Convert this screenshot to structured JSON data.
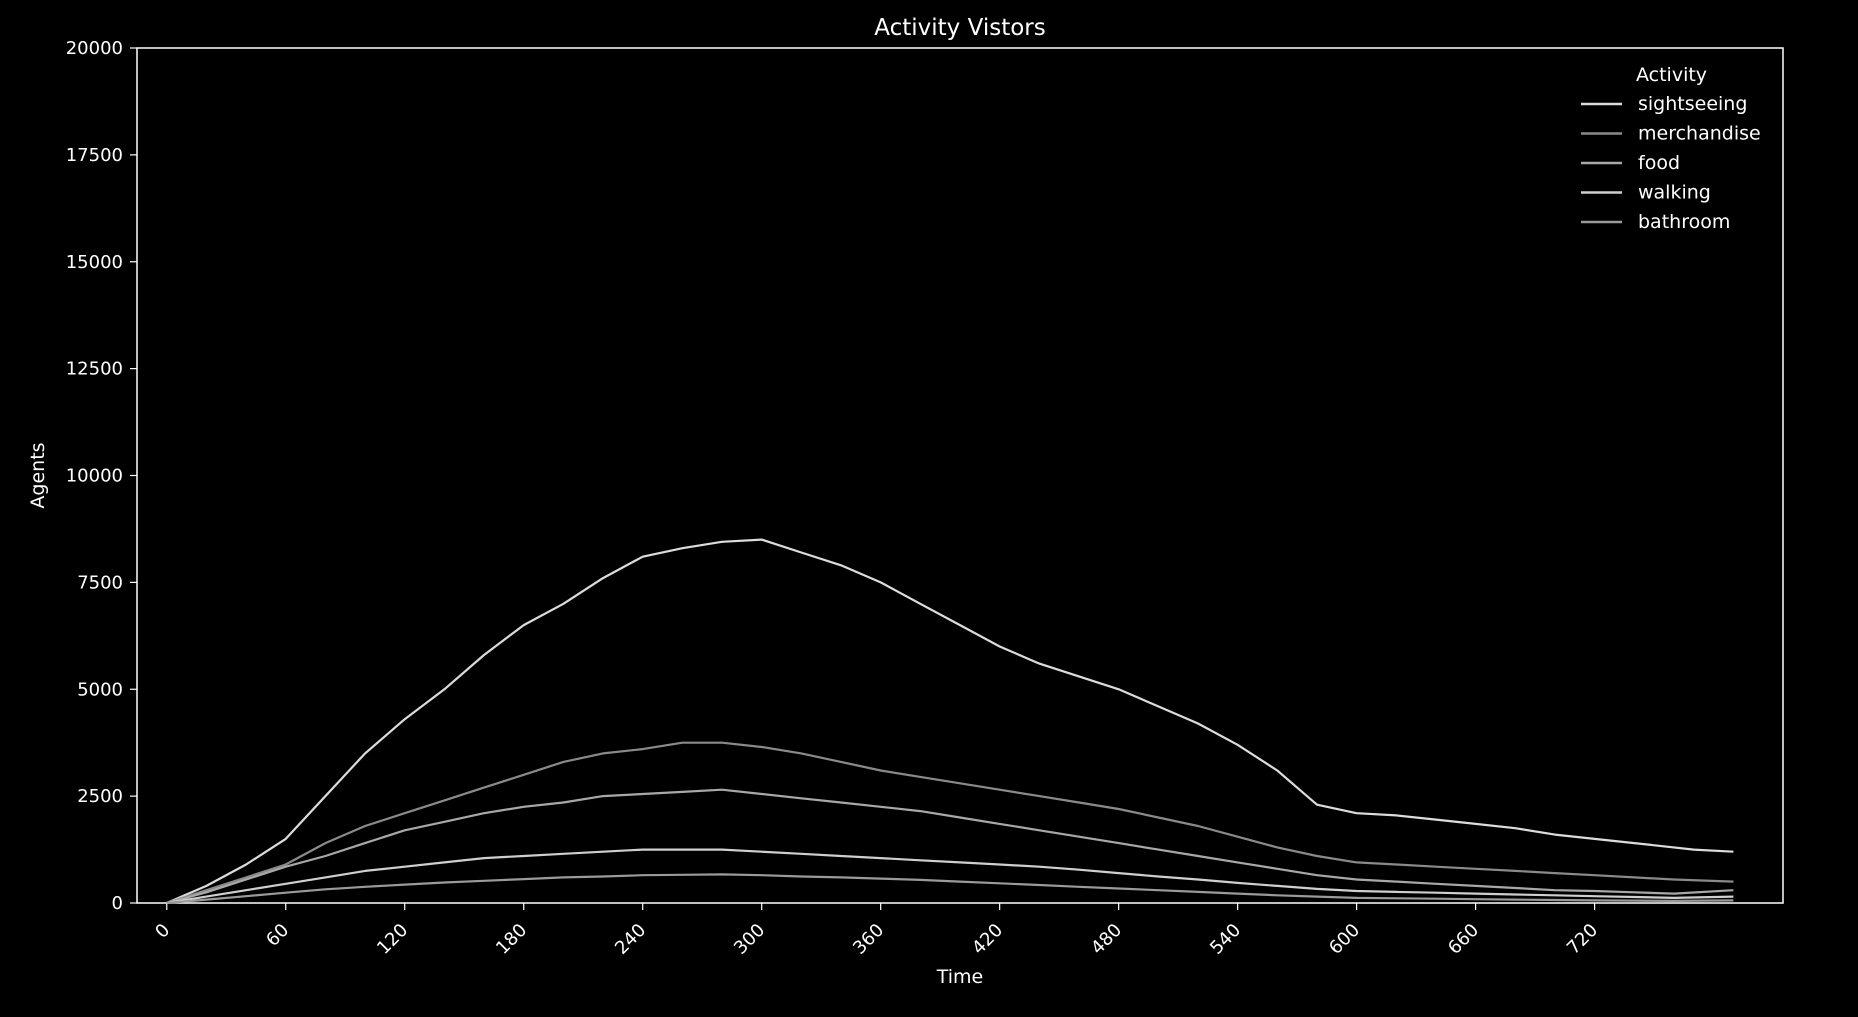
{
  "chart_data": {
    "type": "line",
    "title": "Activity Vistors",
    "xlabel": "Time",
    "ylabel": "Agents",
    "xlim": [
      -15,
      815
    ],
    "ylim": [
      0,
      20000
    ],
    "xticks": [
      0,
      60,
      120,
      180,
      240,
      300,
      360,
      420,
      480,
      540,
      600,
      660,
      720
    ],
    "xtick_labels": [
      "0",
      "60",
      "120",
      "180",
      "240",
      "300",
      "360",
      "420",
      "480",
      "540",
      "600",
      "660",
      "720"
    ],
    "yticks": [
      0,
      2500,
      5000,
      7500,
      10000,
      12500,
      15000,
      17500,
      20000
    ],
    "ytick_labels": [
      "0",
      "2500",
      "5000",
      "7500",
      "10000",
      "12500",
      "15000",
      "17500",
      "20000"
    ],
    "grid": false,
    "legend": {
      "title": "Activity",
      "placement": "top-right"
    },
    "series": [
      {
        "name": "sightseeing",
        "color": "#dcdcdc",
        "x": [
          0,
          20,
          40,
          60,
          80,
          100,
          120,
          140,
          160,
          180,
          200,
          220,
          240,
          260,
          280,
          300,
          320,
          340,
          360,
          380,
          400,
          420,
          440,
          460,
          480,
          500,
          520,
          540,
          560,
          570,
          580,
          600,
          620,
          640,
          660,
          680,
          700,
          720,
          740,
          770,
          790
        ],
        "y": [
          0,
          400,
          900,
          1500,
          2500,
          3500,
          4300,
          5000,
          5800,
          6500,
          7000,
          7600,
          8100,
          8300,
          8450,
          8500,
          8200,
          7900,
          7500,
          7000,
          6500,
          6000,
          5600,
          5300,
          5000,
          4600,
          4200,
          3700,
          3100,
          2700,
          2300,
          2100,
          2050,
          1950,
          1850,
          1750,
          1600,
          1500,
          1400,
          1250,
          1200
        ]
      },
      {
        "name": "merchandise",
        "color": "#8a8a8a",
        "x": [
          0,
          20,
          40,
          60,
          80,
          100,
          120,
          140,
          160,
          180,
          200,
          220,
          240,
          260,
          280,
          300,
          320,
          340,
          360,
          380,
          400,
          420,
          440,
          460,
          480,
          500,
          520,
          540,
          560,
          580,
          600,
          620,
          640,
          660,
          680,
          700,
          720,
          740,
          760,
          790
        ],
        "y": [
          0,
          300,
          600,
          900,
          1400,
          1800,
          2100,
          2400,
          2700,
          3000,
          3300,
          3500,
          3600,
          3750,
          3750,
          3650,
          3500,
          3300,
          3100,
          2950,
          2800,
          2650,
          2500,
          2350,
          2200,
          2000,
          1800,
          1550,
          1300,
          1100,
          950,
          900,
          850,
          800,
          750,
          700,
          650,
          600,
          550,
          500
        ]
      },
      {
        "name": "food",
        "color": "#a8a8a8",
        "x": [
          0,
          20,
          40,
          60,
          80,
          100,
          120,
          140,
          160,
          180,
          200,
          220,
          240,
          260,
          280,
          300,
          320,
          340,
          360,
          380,
          400,
          420,
          440,
          460,
          480,
          500,
          520,
          540,
          560,
          580,
          600,
          620,
          640,
          660,
          680,
          700,
          720,
          740,
          760,
          790
        ],
        "y": [
          0,
          250,
          550,
          850,
          1100,
          1400,
          1700,
          1900,
          2100,
          2250,
          2350,
          2500,
          2550,
          2600,
          2650,
          2550,
          2450,
          2350,
          2250,
          2150,
          2000,
          1850,
          1700,
          1550,
          1400,
          1250,
          1100,
          950,
          800,
          650,
          550,
          500,
          450,
          400,
          350,
          300,
          280,
          250,
          220,
          300
        ]
      },
      {
        "name": "walking",
        "color": "#cfcfcf",
        "x": [
          0,
          20,
          40,
          60,
          80,
          100,
          120,
          140,
          160,
          180,
          200,
          220,
          240,
          260,
          280,
          300,
          320,
          340,
          360,
          380,
          400,
          420,
          440,
          460,
          480,
          500,
          520,
          540,
          560,
          580,
          600,
          620,
          640,
          660,
          680,
          700,
          720,
          740,
          760,
          790
        ],
        "y": [
          0,
          150,
          300,
          450,
          600,
          750,
          850,
          950,
          1050,
          1100,
          1150,
          1200,
          1250,
          1250,
          1250,
          1200,
          1150,
          1100,
          1050,
          1000,
          950,
          900,
          850,
          780,
          700,
          620,
          550,
          470,
          400,
          330,
          280,
          260,
          240,
          220,
          200,
          180,
          160,
          140,
          120,
          150
        ]
      },
      {
        "name": "bathroom",
        "color": "#9a9a9a",
        "x": [
          0,
          20,
          40,
          60,
          80,
          100,
          120,
          140,
          160,
          180,
          200,
          220,
          240,
          260,
          280,
          300,
          320,
          340,
          360,
          380,
          400,
          420,
          440,
          460,
          480,
          500,
          520,
          540,
          560,
          580,
          600,
          620,
          640,
          660,
          680,
          700,
          720,
          740,
          760,
          790
        ],
        "y": [
          0,
          80,
          160,
          240,
          320,
          380,
          430,
          480,
          520,
          560,
          600,
          620,
          650,
          660,
          670,
          650,
          620,
          600,
          570,
          540,
          500,
          460,
          420,
          380,
          340,
          300,
          260,
          220,
          180,
          150,
          120,
          110,
          100,
          90,
          80,
          70,
          60,
          55,
          50,
          60
        ]
      }
    ]
  }
}
